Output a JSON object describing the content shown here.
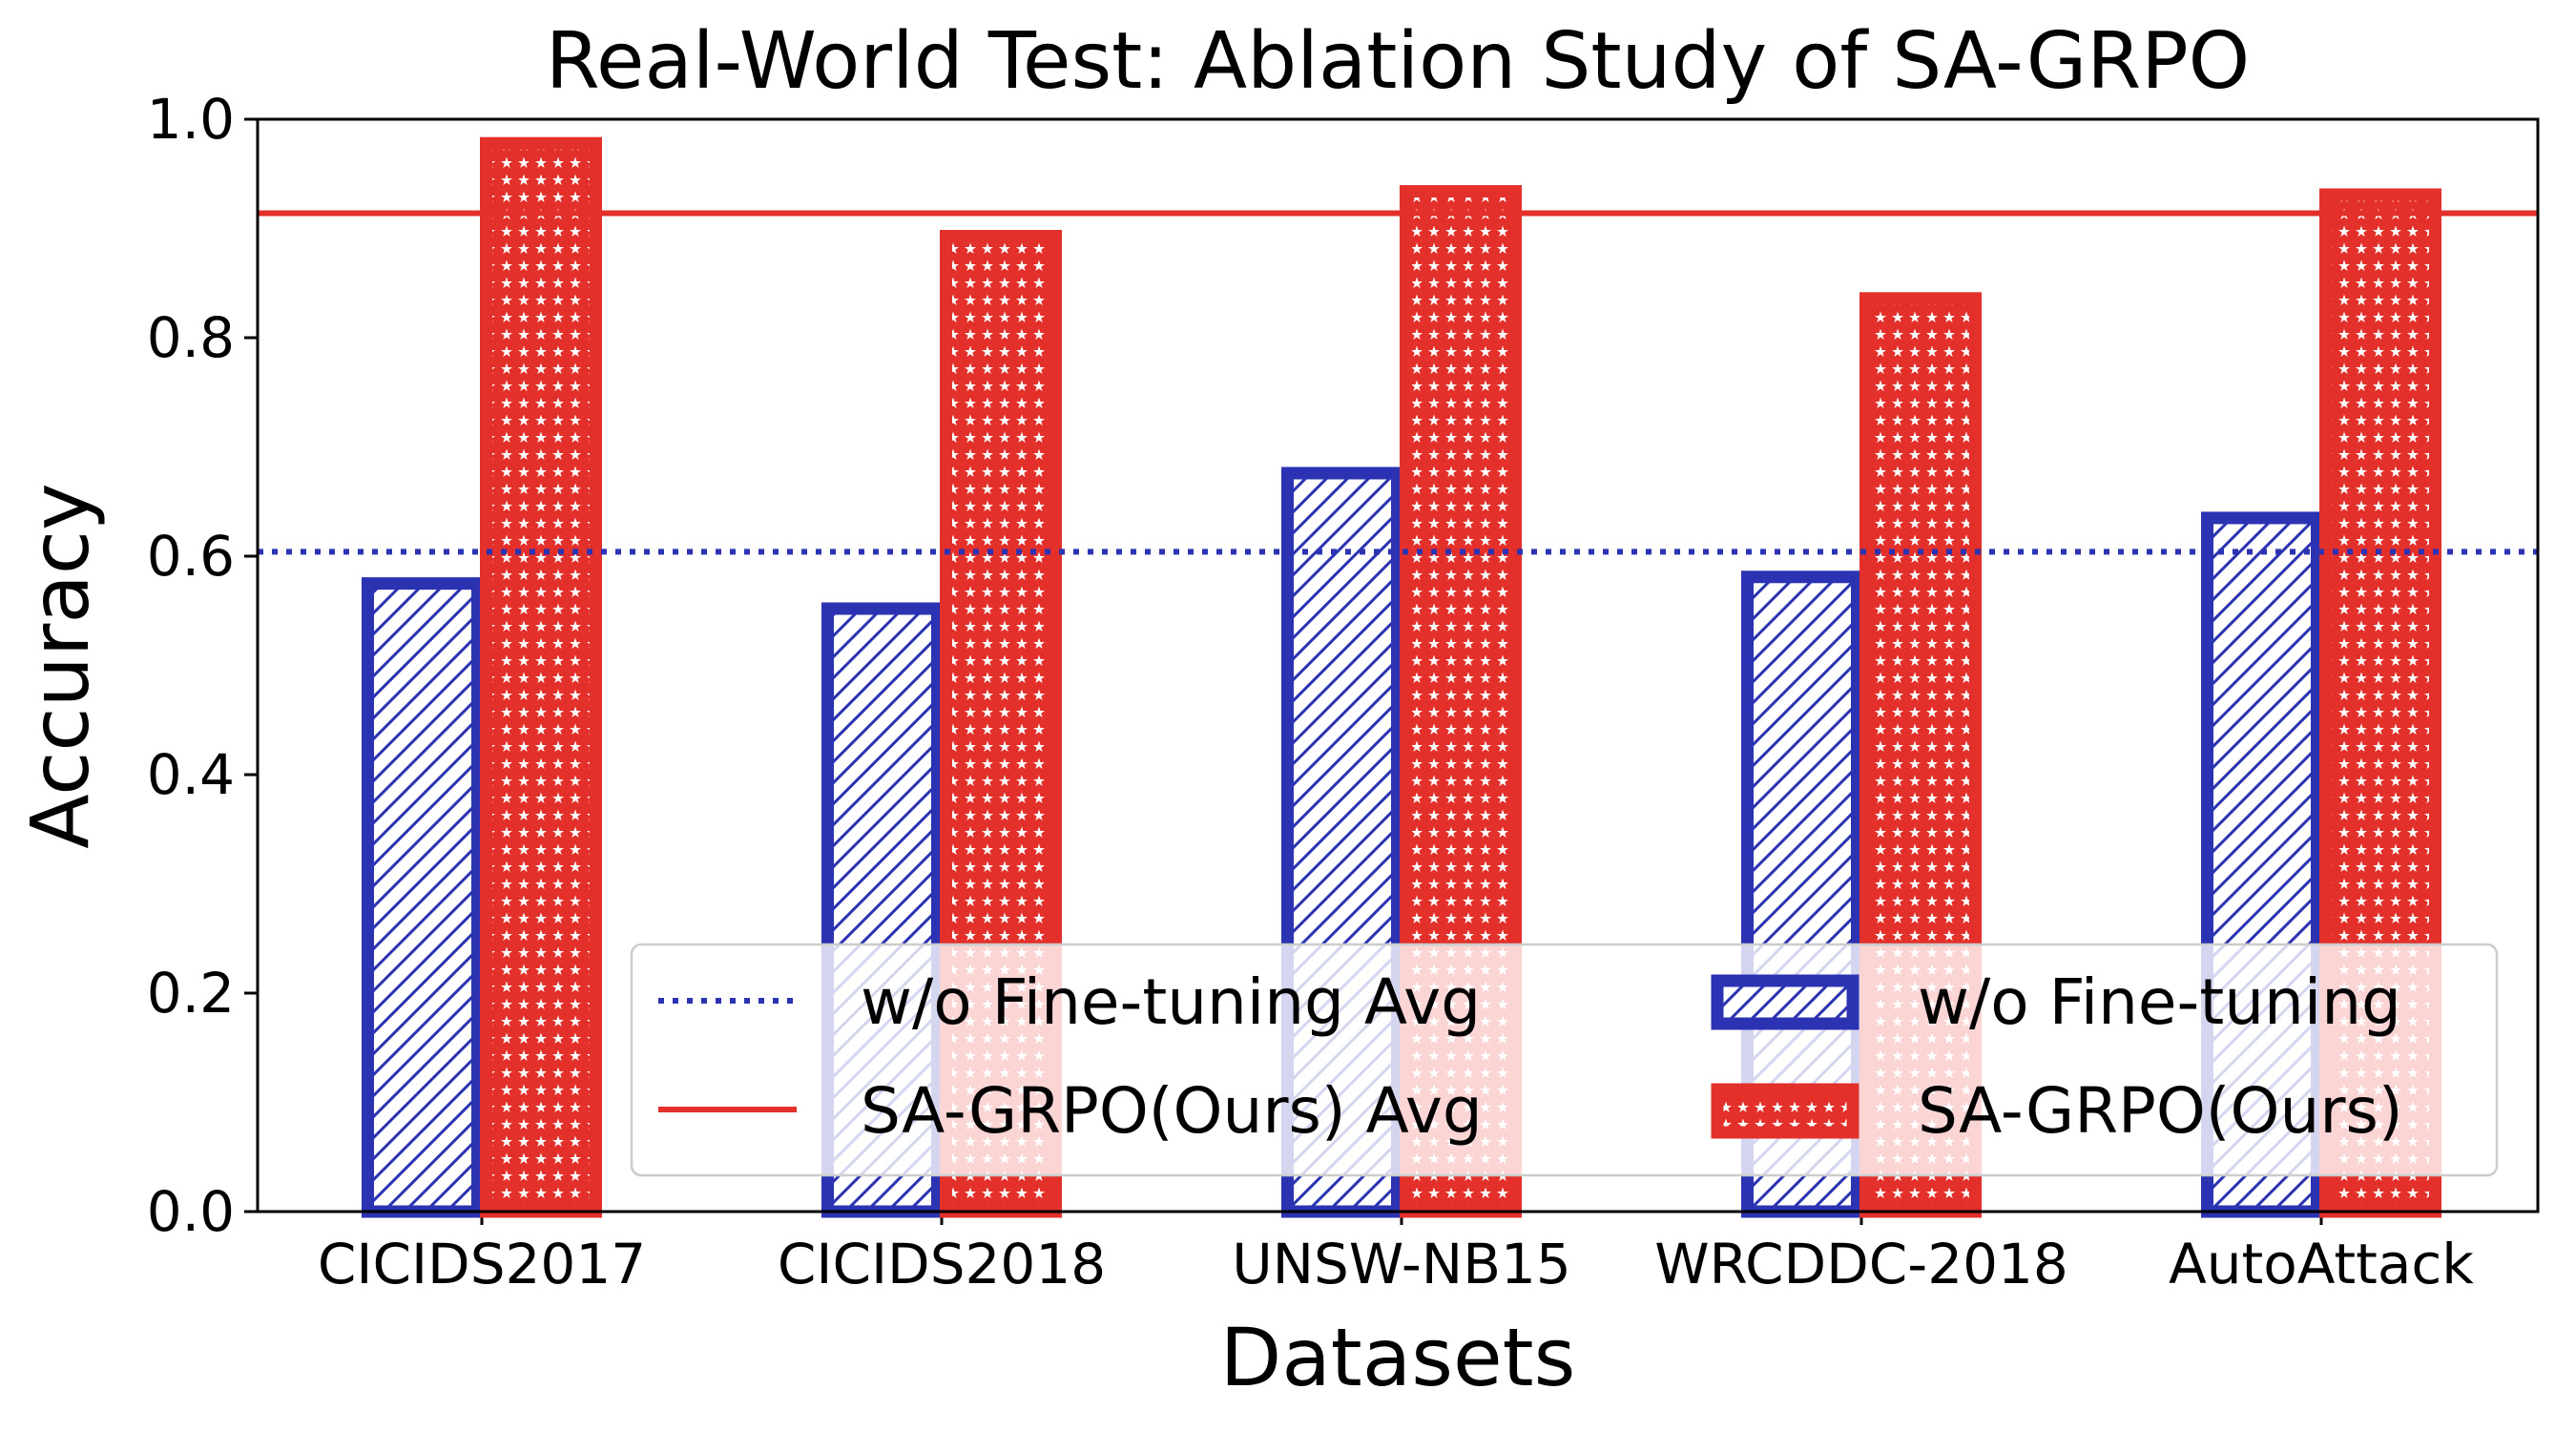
{
  "chart_data": {
    "type": "bar",
    "title": "Real-World Test: Ablation Study of SA-GRPO",
    "xlabel": "Datasets",
    "ylabel": "Accuracy",
    "ylim": [
      0,
      1.0
    ],
    "yticks": [
      "0.0",
      "0.2",
      "0.4",
      "0.6",
      "0.8",
      "1.0"
    ],
    "categories": [
      "CICIDS2017",
      "CICIDS2018",
      "UNSW-NB15",
      "WRCDDC-2018",
      "AutoAttack"
    ],
    "series": [
      {
        "name": "w/o Fine-tuning",
        "color": "#2b33b3",
        "hatch": "diagonal",
        "values": [
          0.575,
          0.552,
          0.676,
          0.581,
          0.635
        ]
      },
      {
        "name": "SA-GRPO(Ours)",
        "color": "#e3302a",
        "hatch": "stars",
        "values": [
          0.978,
          0.893,
          0.934,
          0.836,
          0.931
        ]
      }
    ],
    "averages": [
      {
        "name": "w/o Fine-tuning Avg",
        "value": 0.604,
        "color": "#2b33b3",
        "style": "dotted"
      },
      {
        "name": "SA-GRPO(Ours) Avg",
        "value": 0.914,
        "color": "#e3302a",
        "style": "solid"
      }
    ],
    "legend": {
      "placement": "lower-right",
      "entries": [
        "w/o Fine-tuning Avg",
        "w/o Fine-tuning",
        "SA-GRPO(Ours) Avg",
        "SA-GRPO(Ours)"
      ]
    },
    "grid": false
  }
}
